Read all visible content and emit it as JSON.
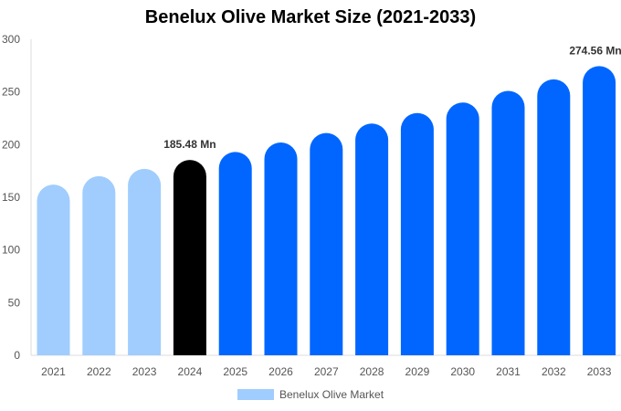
{
  "chart_data": {
    "type": "bar",
    "title": "Benelux Olive Market Size (2021-2033)",
    "categories": [
      "2021",
      "2022",
      "2023",
      "2024",
      "2025",
      "2026",
      "2027",
      "2028",
      "2029",
      "2030",
      "2031",
      "2032",
      "2033"
    ],
    "series": [
      {
        "name": "Benelux Olive Market",
        "values": [
          162,
          170,
          177,
          185.48,
          193,
          202,
          211,
          220,
          230,
          240,
          251,
          262,
          274.56
        ]
      }
    ],
    "ylim": [
      0,
      300
    ],
    "yticks": [
      0,
      50,
      100,
      150,
      200,
      250,
      300
    ],
    "grid": false,
    "legend": "bottom",
    "data_labels": [
      {
        "category": "2024",
        "text": "185.48 Mn"
      },
      {
        "category": "2033",
        "text": "274.56 Mn"
      }
    ],
    "colors": {
      "historical": "#a0cdfd",
      "current": "#000000",
      "forecast": "#0066ff"
    }
  }
}
